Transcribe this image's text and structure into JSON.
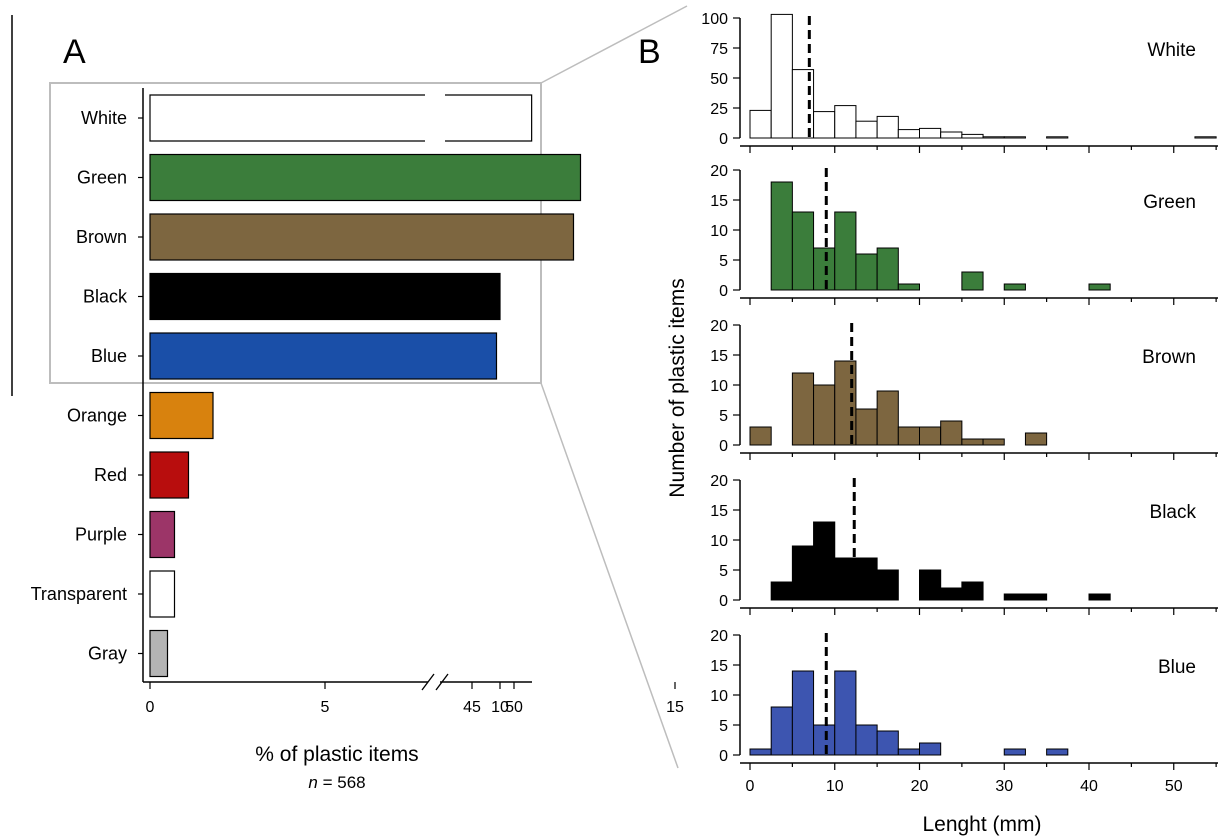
{
  "chart_data": [
    {
      "id": "A",
      "type": "bar",
      "orientation": "horizontal",
      "panel_label": "A",
      "categories": [
        "White",
        "Green",
        "Brown",
        "Black",
        "Blue",
        "Orange",
        "Red",
        "Purple",
        "Transparent",
        "Gray"
      ],
      "values": [
        52.1,
        12.3,
        12.1,
        10.0,
        9.9,
        1.8,
        1.1,
        0.7,
        0.7,
        0.5
      ],
      "colors": [
        "#ffffff",
        "#3b7d3b",
        "#7d6640",
        "#000000",
        "#1a4fa8",
        "#d8820e",
        "#b80d0d",
        "#9c3568",
        "#ffffff",
        "#b4b4b4"
      ],
      "xlabel": "% of plastic items",
      "n_prefix": "n",
      "n_suffix": " = 568",
      "xticks_low": [
        "0",
        "5",
        "10",
        "15"
      ],
      "xticks_low_values": [
        0,
        5,
        10,
        15
      ],
      "xticks_high": [
        "45",
        "50"
      ],
      "xticks_high_values": [
        45,
        50
      ],
      "axis_break": [
        17,
        43
      ],
      "xlim": [
        0,
        53
      ],
      "highlight_box": [
        "White",
        "Green",
        "Brown",
        "Black",
        "Blue"
      ]
    },
    {
      "id": "B",
      "type": "bar",
      "subtype": "histogram",
      "panel_label": "B",
      "xlabel": "Lenght (mm)",
      "ylabel": "Number of plastic items",
      "bin_width": 2.5,
      "xlim": [
        0,
        55
      ],
      "xticks": [
        0,
        10,
        20,
        30,
        40,
        50
      ],
      "panels": [
        {
          "name": "White",
          "color": "#ffffff",
          "ylim": [
            0,
            100
          ],
          "yticks": [
            0,
            25,
            50,
            75,
            100
          ],
          "median": 7,
          "bins": [
            [
              0,
              23
            ],
            [
              2.5,
              103
            ],
            [
              5,
              57
            ],
            [
              7.5,
              22
            ],
            [
              10,
              27
            ],
            [
              12.5,
              14
            ],
            [
              15,
              18
            ],
            [
              17.5,
              7
            ],
            [
              20,
              8
            ],
            [
              22.5,
              5
            ],
            [
              25,
              3
            ],
            [
              27.5,
              1
            ],
            [
              30,
              1
            ],
            [
              35,
              1
            ],
            [
              52.5,
              1
            ]
          ]
        },
        {
          "name": "Green",
          "color": "#3b7d3b",
          "ylim": [
            0,
            20
          ],
          "yticks": [
            0,
            5,
            10,
            15,
            20
          ],
          "median": 9,
          "bins": [
            [
              2.5,
              18
            ],
            [
              5,
              13
            ],
            [
              7.5,
              7
            ],
            [
              10,
              13
            ],
            [
              12.5,
              6
            ],
            [
              15,
              7
            ],
            [
              17.5,
              1
            ],
            [
              25,
              3
            ],
            [
              30,
              1
            ],
            [
              40,
              1
            ]
          ]
        },
        {
          "name": "Brown",
          "color": "#7d6640",
          "ylim": [
            0,
            20
          ],
          "yticks": [
            0,
            5,
            10,
            15,
            20
          ],
          "median": 12,
          "bins": [
            [
              0,
              3
            ],
            [
              5,
              12
            ],
            [
              7.5,
              10
            ],
            [
              10,
              14
            ],
            [
              12.5,
              6
            ],
            [
              15,
              9
            ],
            [
              17.5,
              3
            ],
            [
              20,
              3
            ],
            [
              22.5,
              4
            ],
            [
              25,
              1
            ],
            [
              27.5,
              1
            ],
            [
              32.5,
              2
            ]
          ]
        },
        {
          "name": "Black",
          "color": "#000000",
          "ylim": [
            0,
            20
          ],
          "yticks": [
            0,
            5,
            10,
            15,
            20
          ],
          "median": 12.3,
          "bins": [
            [
              2.5,
              3
            ],
            [
              5,
              9
            ],
            [
              7.5,
              13
            ],
            [
              10,
              7
            ],
            [
              12.5,
              7
            ],
            [
              15,
              5
            ],
            [
              20,
              5
            ],
            [
              22.5,
              2
            ],
            [
              25,
              3
            ],
            [
              30,
              1
            ],
            [
              32.5,
              1
            ],
            [
              40,
              1
            ]
          ]
        },
        {
          "name": "Blue",
          "color": "#3d55b0",
          "ylim": [
            0,
            20
          ],
          "yticks": [
            0,
            5,
            10,
            15,
            20
          ],
          "median": 9,
          "bins": [
            [
              0,
              1
            ],
            [
              2.5,
              8
            ],
            [
              5,
              14
            ],
            [
              7.5,
              5
            ],
            [
              10,
              14
            ],
            [
              12.5,
              5
            ],
            [
              15,
              4
            ],
            [
              17.5,
              1
            ],
            [
              20,
              2
            ],
            [
              30,
              1
            ],
            [
              35,
              1
            ]
          ]
        }
      ]
    }
  ]
}
